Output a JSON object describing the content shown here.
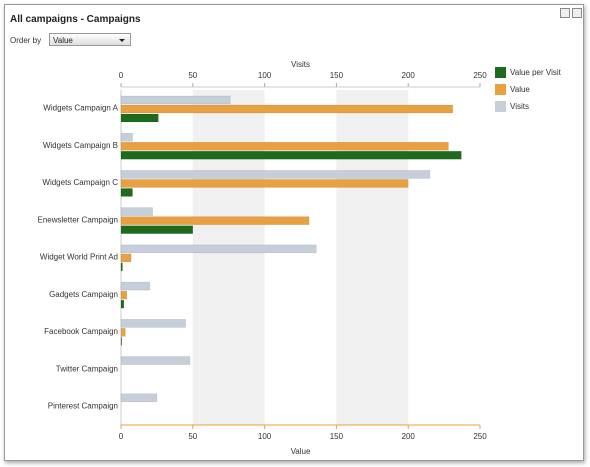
{
  "panel": {
    "title": "All campaigns - Campaigns",
    "order_by_label": "Order by",
    "order_by_value": "Value"
  },
  "chart_data": {
    "type": "bar",
    "orientation": "horizontal",
    "x_label": "Value",
    "x2_label": "Visits",
    "categories": [
      "Widgets Campaign A",
      "Widgets Campaign B",
      "Widgets Campaign C",
      "Enewsletter Campaign",
      "Widget World Print Ad",
      "Gadgets Campaign",
      "Facebook Campaign",
      "Twitter Campaign",
      "Pinterest Campaign"
    ],
    "series": [
      {
        "name": "Value per Visit",
        "color": "#1e6b1e",
        "values": [
          26,
          237,
          8,
          50,
          1,
          2,
          0.5,
          0,
          0
        ]
      },
      {
        "name": "Value",
        "color": "#e8a040",
        "values": [
          231,
          228,
          200,
          131,
          7,
          4,
          3,
          0,
          0
        ]
      },
      {
        "name": "Visits",
        "color": "#c5ced9",
        "axis": "x2",
        "values": [
          76,
          8,
          215,
          22,
          136,
          20,
          45,
          48,
          25
        ]
      }
    ],
    "xlim": [
      0,
      250
    ],
    "xticks": [
      0,
      50,
      100,
      150,
      200,
      250
    ],
    "x2lim": [
      0,
      250
    ],
    "x2ticks": [
      0,
      50,
      100,
      150,
      200,
      250
    ],
    "legend": "right"
  }
}
